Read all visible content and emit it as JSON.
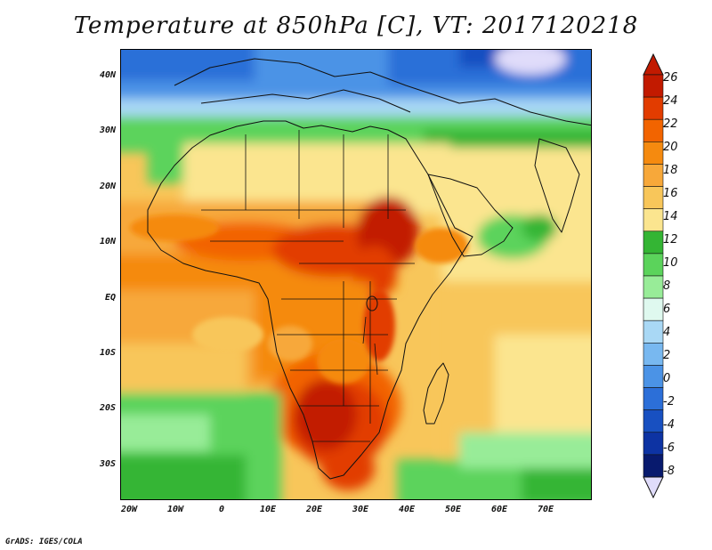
{
  "title": "Temperature at 850hPa [C], VT: 2017120218",
  "credit": "GrADS: IGES/COLA",
  "lat_labels": [
    "40N",
    "30N",
    "20N",
    "10N",
    "EQ",
    "10S",
    "20S",
    "30S"
  ],
  "lon_labels": [
    "20W",
    "10W",
    "0",
    "10E",
    "20E",
    "30E",
    "40E",
    "50E",
    "60E",
    "70E"
  ],
  "colorbar": {
    "labels": [
      "26",
      "24",
      "22",
      "20",
      "18",
      "16",
      "14",
      "12",
      "10",
      "8",
      "6",
      "4",
      "2",
      "0",
      "-2",
      "-4",
      "-6",
      "-8"
    ],
    "colors": [
      "#c21a00",
      "#e23c00",
      "#f26400",
      "#f58a0f",
      "#f7a83a",
      "#f8c65a",
      "#fbe58f",
      "#34b534",
      "#5bd35b",
      "#98ec98",
      "#dff9ef",
      "#a9d8f5",
      "#78b8f0",
      "#4b93e6",
      "#2c6fd8",
      "#1850c1",
      "#0d33a3",
      "#081a6e"
    ],
    "top_arrow_color": "#c21a00",
    "bottom_arrow_color": "#e0dcfa"
  }
}
